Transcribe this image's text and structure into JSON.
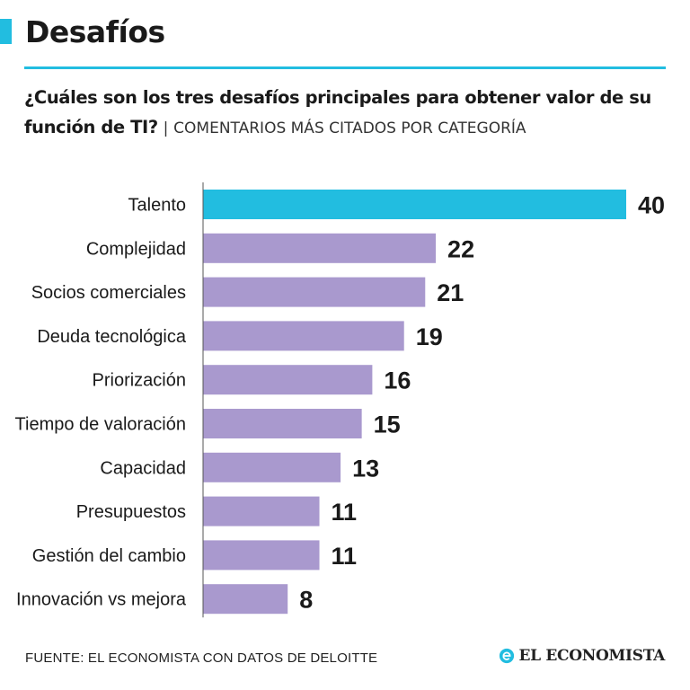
{
  "header": {
    "title": "Desafíos",
    "question": "¿Cuáles son los tres desafíos principales para obtener valor de su función de TI?",
    "separator": "|",
    "category_note": "COMENTARIOS MÁS CITADOS POR CATEGORÍA"
  },
  "footer": {
    "source": "FUENTE: EL ECONOMISTA CON DATOS DE DELOITTE",
    "brand": "EL ECONOMISTA"
  },
  "colors": {
    "accent": "#22bde0",
    "bar_highlight": "#22bde0",
    "bar_default": "#a999ce",
    "text": "#1a1a1a"
  },
  "icons": {
    "brand_logo": "el-economista-logo-icon"
  },
  "chart_data": {
    "type": "bar",
    "orientation": "horizontal",
    "title": "¿Cuáles son los tres desafíos principales para obtener valor de su función de TI?",
    "xlabel": "",
    "ylabel": "",
    "xlim": [
      0,
      40
    ],
    "grid": false,
    "highlight_index": 0,
    "categories": [
      "Talento",
      "Complejidad",
      "Socios comerciales",
      "Deuda tecnológica",
      "Priorización",
      "Tiempo de valoración",
      "Capacidad",
      "Presupuestos",
      "Gestión  del cambio",
      "Innovación vs mejora"
    ],
    "values": [
      40,
      22,
      21,
      19,
      16,
      15,
      13,
      11,
      11,
      8
    ]
  }
}
